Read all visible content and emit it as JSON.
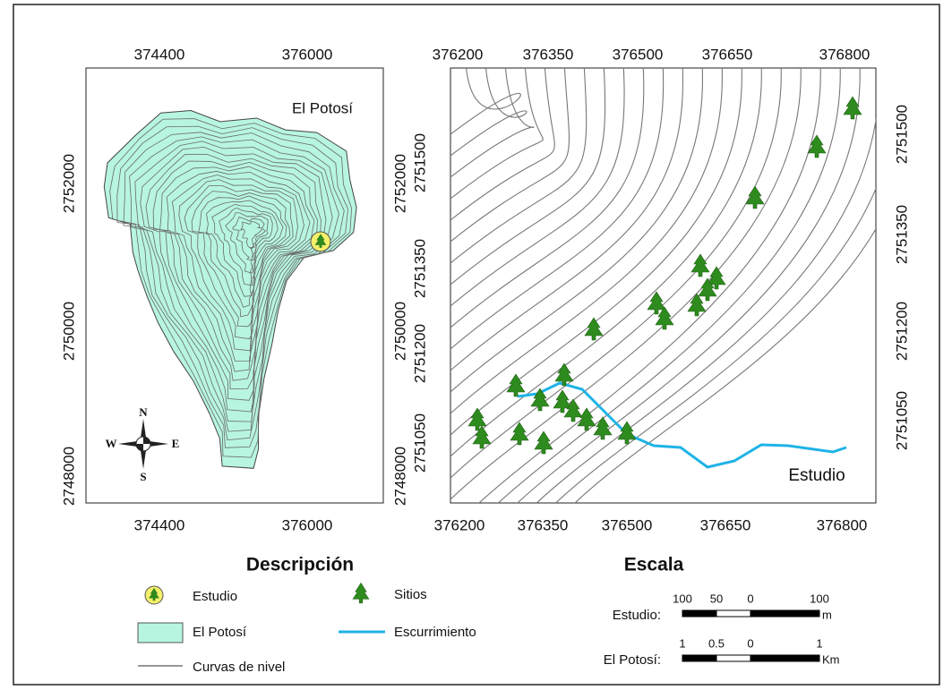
{
  "map_left": {
    "title": "El Potosí",
    "x_ticks_top": [
      "374400",
      "376000"
    ],
    "x_ticks_bottom": [
      "374400",
      "376000"
    ],
    "y_ticks_left": [
      "2752000",
      "2750000",
      "2748000"
    ],
    "y_ticks_right": [
      "2752000",
      "2750000",
      "2748000"
    ]
  },
  "compass": {
    "n": "N",
    "s": "S",
    "e": "E",
    "w": "W"
  },
  "map_right": {
    "label": "Estudio",
    "x_ticks_top": [
      "376200",
      "376350",
      "376500",
      "376650",
      "376800"
    ],
    "x_ticks_bottom": [
      "376200",
      "376350",
      "376500",
      "376650",
      "376800"
    ],
    "y_ticks_left": [
      "2751500",
      "2751350",
      "2751200",
      "2751050"
    ],
    "y_ticks_right": [
      "2751500",
      "2751350",
      "2751200",
      "2751050"
    ]
  },
  "legend": {
    "title": "Descripción",
    "items": [
      "Estudio",
      "Sitios",
      "El Potosí",
      "Escurrimiento",
      "Curvas de nivel"
    ]
  },
  "scale": {
    "title": "Escala",
    "rows": [
      {
        "label": "Estudio:",
        "ticks": [
          "100",
          "50",
          "0",
          "100"
        ],
        "unit": "m"
      },
      {
        "label": "El Potosí:",
        "ticks": [
          "1",
          "0.5",
          "0",
          "1"
        ],
        "unit": "Km"
      }
    ]
  }
}
